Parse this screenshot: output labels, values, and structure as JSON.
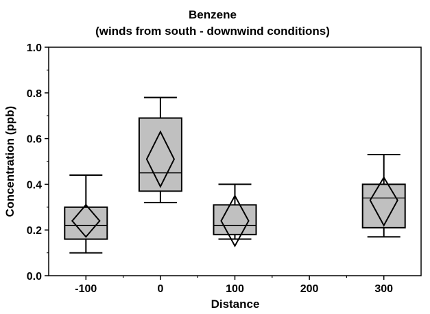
{
  "chart_data": {
    "type": "box",
    "title": "Benzene",
    "subtitle": "(winds from south - downwind conditions)",
    "xlabel": "Distance",
    "ylabel": "Concentration (ppb)",
    "ylim": [
      0.0,
      1.0
    ],
    "xlim": [
      -150,
      350
    ],
    "y_ticks": [
      "0.0",
      "0.2",
      "0.4",
      "0.6",
      "0.8",
      "1.0"
    ],
    "x_ticks": [
      "-100",
      "0",
      "100",
      "200",
      "300"
    ],
    "grid": false,
    "legend": "none",
    "box_color": "#c0c0c0",
    "boxes": [
      {
        "x": -100,
        "min": 0.1,
        "q1": 0.16,
        "median": 0.22,
        "q3": 0.3,
        "max": 0.44,
        "mean": 0.24,
        "ci_low": 0.17,
        "ci_high": 0.31
      },
      {
        "x": 0,
        "min": 0.32,
        "q1": 0.37,
        "median": 0.45,
        "q3": 0.69,
        "max": 0.78,
        "mean": 0.51,
        "ci_low": 0.39,
        "ci_high": 0.63
      },
      {
        "x": 100,
        "min": 0.16,
        "q1": 0.18,
        "median": 0.22,
        "q3": 0.31,
        "max": 0.4,
        "mean": 0.24,
        "ci_low": 0.13,
        "ci_high": 0.35
      },
      {
        "x": 300,
        "min": 0.17,
        "q1": 0.21,
        "median": 0.34,
        "q3": 0.4,
        "max": 0.53,
        "mean": 0.33,
        "ci_low": 0.22,
        "ci_high": 0.43
      }
    ]
  }
}
